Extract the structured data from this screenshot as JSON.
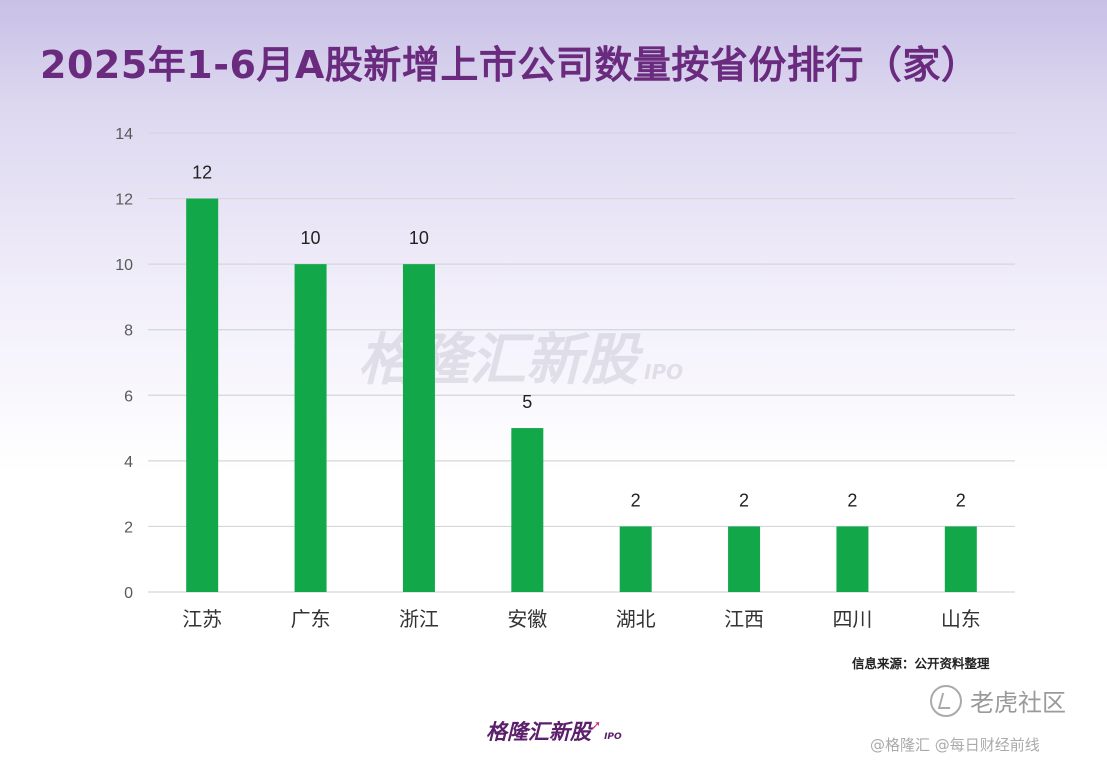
{
  "title": "2025年1-6月A股新增上市公司数量按省份排行（家）",
  "source_note": "信息来源：公开资料整理",
  "watermark": {
    "text": "格隆汇新股",
    "sub": "IPO"
  },
  "footer_logo": {
    "text": "格隆汇新股",
    "sub": "IPO"
  },
  "tiger_community": {
    "text": "老虎社区"
  },
  "credit": "@格隆汇 @每日财经前线",
  "colors": {
    "bar": "#12a84a",
    "title": "#6a2a7e",
    "grid": "#d5d5dc",
    "axis_text": "#595959"
  },
  "chart_data": {
    "type": "bar",
    "categories": [
      "江苏",
      "广东",
      "浙江",
      "安徽",
      "湖北",
      "江西",
      "四川",
      "山东"
    ],
    "values": [
      12,
      10,
      10,
      5,
      2,
      2,
      2,
      2
    ],
    "data_labels": [
      "12",
      "10",
      "10",
      "5",
      "2",
      "2",
      "2",
      "2"
    ],
    "yticks": [
      "0",
      "2",
      "4",
      "6",
      "8",
      "10",
      "12",
      "14"
    ],
    "ylim": [
      0,
      14
    ],
    "ystep": 2,
    "grid": true,
    "legend": "none"
  }
}
